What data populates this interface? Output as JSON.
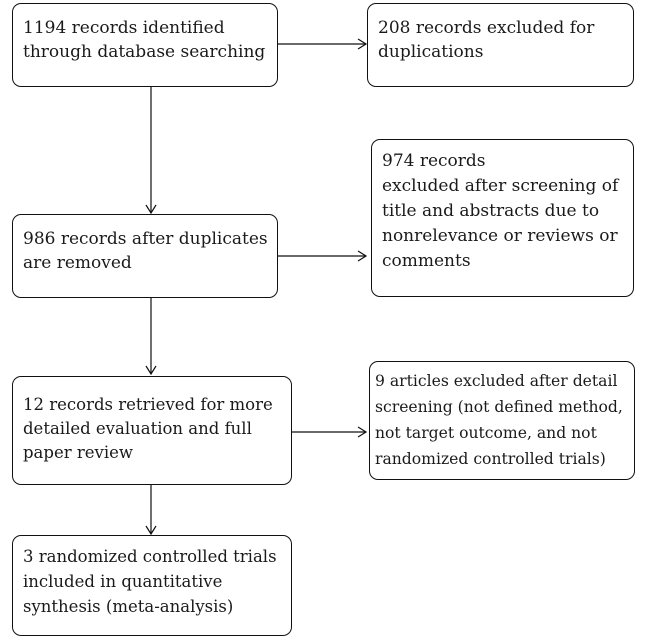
{
  "flowchart": {
    "identified": [
      "1194 records identified",
      "through database searching"
    ],
    "excluded_duplicates": [
      "208 records excluded for",
      "duplications"
    ],
    "after_duplicates": [
      "986 records after duplicates",
      "are removed"
    ],
    "excluded_screening": [
      "974 records",
      "excluded after screening of",
      "title and abstracts due to",
      "nonrelevance or reviews or",
      "comments"
    ],
    "retrieved": [
      "12 records retrieved for more",
      "detailed evaluation and full",
      "paper review"
    ],
    "excluded_detail": [
      "9 articles excluded after detail",
      "screening (not defined method,",
      "not target outcome, and not",
      "randomized controlled trials)"
    ],
    "included": [
      "3 randomized controlled trials",
      "included in quantitative",
      "synthesis (meta-analysis)"
    ]
  }
}
